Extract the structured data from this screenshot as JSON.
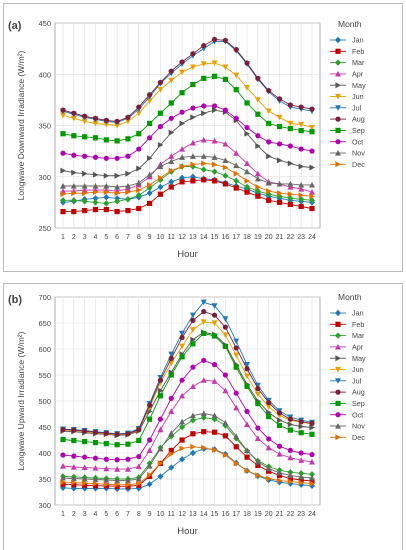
{
  "chart_data": [
    {
      "type": "line",
      "panel_label": "(a)",
      "title": "",
      "xlabel": "Hour",
      "ylabel": "Longwave Downward Irradiance (W/m²)",
      "ylim": [
        250,
        450
      ],
      "yticks": [
        250,
        300,
        350,
        400,
        450
      ],
      "grid": true,
      "legend_title": "Month",
      "legend_position": "right",
      "x": [
        1,
        2,
        3,
        4,
        5,
        6,
        7,
        8,
        9,
        10,
        11,
        12,
        13,
        14,
        15,
        16,
        17,
        18,
        19,
        20,
        21,
        22,
        23,
        24
      ],
      "series": [
        {
          "name": "Jan",
          "color": "#1f77b4",
          "marker": "diamond",
          "values": [
            275,
            276,
            278,
            279,
            280,
            279,
            278,
            280,
            284,
            290,
            295,
            299,
            300,
            298,
            297,
            294,
            291,
            288,
            284,
            281,
            279,
            277,
            276,
            275
          ]
        },
        {
          "name": "Feb",
          "color": "#c00000",
          "marker": "square",
          "values": [
            266,
            266,
            267,
            268,
            268,
            266,
            267,
            269,
            274,
            283,
            290,
            295,
            296,
            297,
            296,
            293,
            289,
            285,
            281,
            277,
            275,
            273,
            271,
            269
          ]
        },
        {
          "name": "Mar",
          "color": "#2ca02c",
          "marker": "diamond",
          "values": [
            277,
            277,
            276,
            275,
            274,
            276,
            278,
            282,
            289,
            297,
            305,
            310,
            310,
            307,
            305,
            301,
            296,
            290,
            286,
            283,
            281,
            279,
            278,
            277
          ]
        },
        {
          "name": "Apr",
          "color": "#c837ab",
          "marker": "triangle-up",
          "values": [
            286,
            286,
            287,
            287,
            287,
            286,
            288,
            292,
            300,
            312,
            320,
            327,
            333,
            336,
            335,
            332,
            323,
            313,
            303,
            295,
            293,
            290,
            288,
            285
          ]
        },
        {
          "name": "May",
          "color": "#555555",
          "marker": "triangle-right",
          "values": [
            306,
            304,
            303,
            302,
            301,
            301,
            303,
            308,
            318,
            331,
            343,
            352,
            358,
            362,
            365,
            363,
            355,
            342,
            330,
            320,
            316,
            313,
            310,
            309
          ]
        },
        {
          "name": "Jun",
          "color": "#e8a000",
          "marker": "triangle-down",
          "values": [
            360,
            357,
            354,
            352,
            351,
            350,
            354,
            362,
            374,
            385,
            394,
            402,
            407,
            410,
            411,
            407,
            399,
            387,
            375,
            364,
            358,
            352,
            351,
            348
          ]
        },
        {
          "name": "Jul",
          "color": "#1f77b4",
          "marker": "triangle-down",
          "values": [
            364,
            361,
            358,
            356,
            354,
            353,
            357,
            366,
            378,
            391,
            401,
            410,
            418,
            425,
            432,
            432,
            423,
            410,
            395,
            383,
            374,
            368,
            366,
            364
          ]
        },
        {
          "name": "Aug",
          "color": "#7a1f3d",
          "marker": "circle",
          "values": [
            365,
            362,
            359,
            357,
            355,
            354,
            358,
            368,
            380,
            392,
            403,
            412,
            420,
            428,
            434,
            433,
            424,
            411,
            396,
            384,
            376,
            370,
            368,
            366
          ]
        },
        {
          "name": "Sep",
          "color": "#009900",
          "marker": "square",
          "values": [
            342,
            340,
            339,
            338,
            336,
            335,
            337,
            342,
            352,
            362,
            372,
            382,
            390,
            396,
            398,
            395,
            385,
            372,
            361,
            352,
            349,
            347,
            345,
            344
          ]
        },
        {
          "name": "Oct",
          "color": "#b000b0",
          "marker": "circle",
          "values": [
            323,
            321,
            320,
            319,
            318,
            318,
            320,
            327,
            338,
            349,
            357,
            363,
            367,
            369,
            369,
            365,
            357,
            348,
            340,
            334,
            332,
            330,
            327,
            325
          ]
        },
        {
          "name": "Nov",
          "color": "#666666",
          "marker": "triangle-up",
          "values": [
            291,
            291,
            291,
            291,
            291,
            290,
            291,
            294,
            302,
            310,
            315,
            319,
            320,
            320,
            319,
            316,
            311,
            305,
            298,
            294,
            293,
            293,
            292,
            292
          ]
        },
        {
          "name": "Dec",
          "color": "#e07000",
          "marker": "triangle-right",
          "values": [
            283,
            284,
            284,
            285,
            285,
            284,
            285,
            287,
            292,
            299,
            306,
            310,
            312,
            313,
            312,
            309,
            303,
            296,
            290,
            286,
            284,
            283,
            282,
            281
          ]
        }
      ]
    },
    {
      "type": "line",
      "panel_label": "(b)",
      "title": "",
      "xlabel": "Hour",
      "ylabel": "Longwave Upward Irradiance (W/m²)",
      "ylim": [
        300,
        700
      ],
      "yticks": [
        300,
        350,
        400,
        450,
        500,
        550,
        600,
        650,
        700
      ],
      "grid": true,
      "legend_title": "Month",
      "legend_position": "right",
      "x": [
        1,
        2,
        3,
        4,
        5,
        6,
        7,
        8,
        9,
        10,
        11,
        12,
        13,
        14,
        15,
        16,
        17,
        18,
        19,
        20,
        21,
        22,
        23,
        24
      ],
      "series": [
        {
          "name": "Jan",
          "color": "#1f77b4",
          "marker": "diamond",
          "values": [
            333,
            332,
            332,
            332,
            332,
            331,
            331,
            332,
            340,
            355,
            372,
            388,
            400,
            408,
            407,
            398,
            381,
            366,
            356,
            348,
            344,
            341,
            339,
            337
          ]
        },
        {
          "name": "Feb",
          "color": "#c00000",
          "marker": "square",
          "values": [
            340,
            339,
            338,
            337,
            337,
            336,
            336,
            338,
            355,
            380,
            405,
            425,
            437,
            441,
            440,
            433,
            412,
            392,
            376,
            365,
            357,
            351,
            348,
            346
          ]
        },
        {
          "name": "Mar",
          "color": "#2ca02c",
          "marker": "diamond",
          "values": [
            355,
            354,
            353,
            352,
            351,
            350,
            350,
            353,
            380,
            410,
            432,
            450,
            463,
            468,
            465,
            453,
            428,
            404,
            385,
            374,
            367,
            363,
            361,
            359
          ]
        },
        {
          "name": "Apr",
          "color": "#c837ab",
          "marker": "triangle-up",
          "values": [
            375,
            373,
            372,
            371,
            370,
            369,
            369,
            374,
            405,
            445,
            480,
            510,
            528,
            540,
            538,
            520,
            487,
            455,
            428,
            410,
            398,
            391,
            386,
            383
          ]
        },
        {
          "name": "May",
          "color": "#555555",
          "marker": "triangle-right",
          "values": [
            442,
            441,
            439,
            437,
            436,
            434,
            435,
            442,
            480,
            520,
            555,
            590,
            618,
            632,
            628,
            608,
            570,
            532,
            500,
            478,
            463,
            455,
            451,
            449
          ]
        },
        {
          "name": "Jun",
          "color": "#e8a000",
          "marker": "triangle-down",
          "values": [
            444,
            443,
            441,
            439,
            437,
            435,
            436,
            444,
            488,
            535,
            573,
            605,
            637,
            652,
            650,
            627,
            588,
            548,
            513,
            489,
            472,
            463,
            459,
            456
          ]
        },
        {
          "name": "Jul",
          "color": "#1f77b4",
          "marker": "triangle-down",
          "values": [
            446,
            445,
            443,
            441,
            439,
            437,
            438,
            447,
            495,
            545,
            590,
            630,
            665,
            690,
            683,
            658,
            615,
            570,
            530,
            501,
            481,
            469,
            463,
            459
          ]
        },
        {
          "name": "Aug",
          "color": "#7a1f3d",
          "marker": "circle",
          "values": [
            445,
            444,
            442,
            440,
            438,
            436,
            437,
            445,
            492,
            540,
            582,
            622,
            655,
            672,
            665,
            642,
            602,
            562,
            524,
            497,
            477,
            465,
            460,
            457
          ]
        },
        {
          "name": "Sep",
          "color": "#009900",
          "marker": "square",
          "values": [
            426,
            424,
            422,
            420,
            418,
            416,
            417,
            424,
            465,
            510,
            550,
            585,
            610,
            630,
            625,
            605,
            565,
            528,
            495,
            470,
            453,
            444,
            439,
            436
          ]
        },
        {
          "name": "Oct",
          "color": "#b000b0",
          "marker": "circle",
          "values": [
            396,
            394,
            392,
            390,
            388,
            387,
            388,
            393,
            425,
            465,
            505,
            540,
            565,
            578,
            570,
            550,
            515,
            480,
            448,
            427,
            413,
            405,
            400,
            397
          ]
        },
        {
          "name": "Nov",
          "color": "#666666",
          "marker": "triangle-up",
          "values": [
            352,
            351,
            350,
            349,
            348,
            347,
            347,
            350,
            375,
            408,
            438,
            460,
            472,
            476,
            472,
            458,
            432,
            405,
            383,
            370,
            362,
            357,
            354,
            352
          ]
        },
        {
          "name": "Dec",
          "color": "#e07000",
          "marker": "triangle-right",
          "values": [
            344,
            343,
            342,
            341,
            340,
            339,
            339,
            341,
            358,
            380,
            398,
            409,
            412,
            410,
            406,
            396,
            380,
            366,
            357,
            351,
            347,
            345,
            343,
            341
          ]
        }
      ]
    }
  ]
}
